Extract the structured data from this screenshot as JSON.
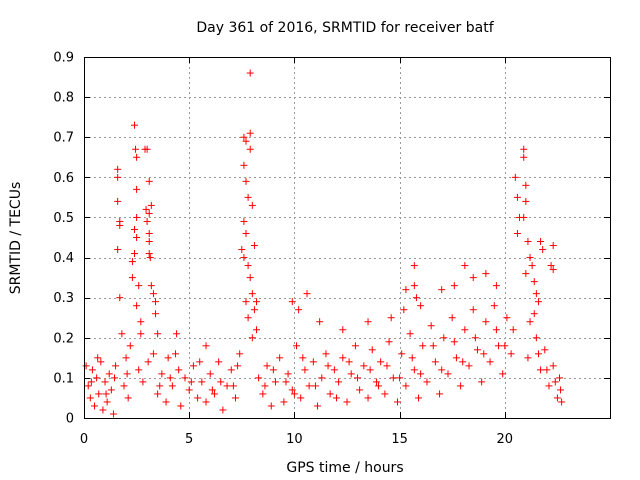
{
  "chart_data": {
    "type": "scatter",
    "title": "Day 361 of 2016, SRMTID for receiver batf",
    "xlabel": "GPS time / hours",
    "ylabel": "SRMTID / TECUs",
    "xlim": [
      0,
      25
    ],
    "ylim": [
      0,
      0.9
    ],
    "xticks": [
      0,
      5,
      10,
      15,
      20
    ],
    "yticks": [
      0,
      0.1,
      0.2,
      0.3,
      0.4,
      0.5,
      0.6,
      0.7,
      0.8,
      0.9
    ],
    "grid": true,
    "marker": "plus",
    "color": "#ff0000",
    "series": [
      {
        "name": "SRMTID",
        "points": [
          [
            1.6,
            0.62
          ],
          [
            1.6,
            0.6
          ],
          [
            1.6,
            0.54
          ],
          [
            1.7,
            0.49
          ],
          [
            1.7,
            0.48
          ],
          [
            1.6,
            0.42
          ],
          [
            1.7,
            0.3
          ],
          [
            1.8,
            0.21
          ],
          [
            2.4,
            0.73
          ],
          [
            2.45,
            0.67
          ],
          [
            2.5,
            0.65
          ],
          [
            2.5,
            0.57
          ],
          [
            2.5,
            0.5
          ],
          [
            2.4,
            0.47
          ],
          [
            2.5,
            0.45
          ],
          [
            2.4,
            0.41
          ],
          [
            2.3,
            0.39
          ],
          [
            2.3,
            0.35
          ],
          [
            2.6,
            0.33
          ],
          [
            2.5,
            0.28
          ],
          [
            2.7,
            0.24
          ],
          [
            2.7,
            0.21
          ],
          [
            2.9,
            0.67
          ],
          [
            3.0,
            0.67
          ],
          [
            3.1,
            0.59
          ],
          [
            2.95,
            0.52
          ],
          [
            3.1,
            0.51
          ],
          [
            3.0,
            0.49
          ],
          [
            3.1,
            0.46
          ],
          [
            3.1,
            0.44
          ],
          [
            3.1,
            0.41
          ],
          [
            3.15,
            0.4
          ],
          [
            3.2,
            0.53
          ],
          [
            3.2,
            0.33
          ],
          [
            3.3,
            0.31
          ],
          [
            3.4,
            0.29
          ],
          [
            3.4,
            0.26
          ],
          [
            3.5,
            0.21
          ],
          [
            7.6,
            0.7
          ],
          [
            7.7,
            0.69
          ],
          [
            7.9,
            0.71
          ],
          [
            7.9,
            0.67
          ],
          [
            7.6,
            0.63
          ],
          [
            7.7,
            0.59
          ],
          [
            7.8,
            0.55
          ],
          [
            8.0,
            0.53
          ],
          [
            7.6,
            0.49
          ],
          [
            7.7,
            0.46
          ],
          [
            7.5,
            0.42
          ],
          [
            7.6,
            0.4
          ],
          [
            7.8,
            0.38
          ],
          [
            7.9,
            0.35
          ],
          [
            8.0,
            0.31
          ],
          [
            7.7,
            0.29
          ],
          [
            8.1,
            0.27
          ],
          [
            7.8,
            0.25
          ],
          [
            8.2,
            0.22
          ],
          [
            8.0,
            0.2
          ],
          [
            7.9,
            0.86
          ],
          [
            8.1,
            0.43
          ],
          [
            8.2,
            0.29
          ],
          [
            20.5,
            0.6
          ],
          [
            20.6,
            0.55
          ],
          [
            20.7,
            0.5
          ],
          [
            20.6,
            0.46
          ],
          [
            20.9,
            0.67
          ],
          [
            20.9,
            0.65
          ],
          [
            21.0,
            0.58
          ],
          [
            21.0,
            0.54
          ],
          [
            20.9,
            0.5
          ],
          [
            21.1,
            0.44
          ],
          [
            21.2,
            0.4
          ],
          [
            21.3,
            0.38
          ],
          [
            21.0,
            0.36
          ],
          [
            21.4,
            0.34
          ],
          [
            21.5,
            0.31
          ],
          [
            21.6,
            0.29
          ],
          [
            21.7,
            0.44
          ],
          [
            21.8,
            0.42
          ],
          [
            21.4,
            0.26
          ],
          [
            21.2,
            0.24
          ],
          [
            22.3,
            0.43
          ],
          [
            22.2,
            0.38
          ],
          [
            22.3,
            0.37
          ],
          [
            15.7,
            0.38
          ],
          [
            15.7,
            0.33
          ],
          [
            15.8,
            0.3
          ],
          [
            16.0,
            0.28
          ],
          [
            15.3,
            0.32
          ],
          [
            15.2,
            0.27
          ],
          [
            17.0,
            0.32
          ],
          [
            17.6,
            0.33
          ],
          [
            18.1,
            0.38
          ],
          [
            18.5,
            0.35
          ],
          [
            19.1,
            0.36
          ],
          [
            19.6,
            0.33
          ],
          [
            10.6,
            0.31
          ],
          [
            11.2,
            0.24
          ],
          [
            9.9,
            0.29
          ],
          [
            10.2,
            0.27
          ],
          [
            4.4,
            0.21
          ],
          [
            5.8,
            0.18
          ],
          [
            12.3,
            0.22
          ],
          [
            13.5,
            0.24
          ],
          [
            14.6,
            0.25
          ],
          [
            0.2,
            0.08
          ],
          [
            0.3,
            0.05
          ],
          [
            0.4,
            0.12
          ],
          [
            0.5,
            0.03
          ],
          [
            0.6,
            0.1
          ],
          [
            0.7,
            0.06
          ],
          [
            0.8,
            0.14
          ],
          [
            0.9,
            0.02
          ],
          [
            1.0,
            0.09
          ],
          [
            1.1,
            0.04
          ],
          [
            1.2,
            0.11
          ],
          [
            1.3,
            0.07
          ],
          [
            1.4,
            0.01
          ],
          [
            1.5,
            0.13
          ],
          [
            1.9,
            0.08
          ],
          [
            2.0,
            0.15
          ],
          [
            2.1,
            0.05
          ],
          [
            2.2,
            0.18
          ],
          [
            2.6,
            0.12
          ],
          [
            2.8,
            0.09
          ],
          [
            3.3,
            0.16
          ],
          [
            3.5,
            0.06
          ],
          [
            3.7,
            0.11
          ],
          [
            3.9,
            0.04
          ],
          [
            4.0,
            0.15
          ],
          [
            4.2,
            0.08
          ],
          [
            4.5,
            0.12
          ],
          [
            4.6,
            0.03
          ],
          [
            4.8,
            0.1
          ],
          [
            5.0,
            0.07
          ],
          [
            5.2,
            0.13
          ],
          [
            5.4,
            0.05
          ],
          [
            5.6,
            0.09
          ],
          [
            5.8,
            0.04
          ],
          [
            6.0,
            0.11
          ],
          [
            6.2,
            0.06
          ],
          [
            6.4,
            0.14
          ],
          [
            6.6,
            0.02
          ],
          [
            6.8,
            0.08
          ],
          [
            7.0,
            0.12
          ],
          [
            7.2,
            0.05
          ],
          [
            7.4,
            0.16
          ],
          [
            8.3,
            0.1
          ],
          [
            8.5,
            0.06
          ],
          [
            8.7,
            0.13
          ],
          [
            8.9,
            0.03
          ],
          [
            9.1,
            0.09
          ],
          [
            9.3,
            0.15
          ],
          [
            9.5,
            0.04
          ],
          [
            9.7,
            0.11
          ],
          [
            9.9,
            0.07
          ],
          [
            10.1,
            0.18
          ],
          [
            10.3,
            0.05
          ],
          [
            10.5,
            0.12
          ],
          [
            10.7,
            0.08
          ],
          [
            10.9,
            0.14
          ],
          [
            11.1,
            0.03
          ],
          [
            11.3,
            0.1
          ],
          [
            11.5,
            0.16
          ],
          [
            11.7,
            0.06
          ],
          [
            11.9,
            0.12
          ],
          [
            12.1,
            0.09
          ],
          [
            12.3,
            0.15
          ],
          [
            12.5,
            0.04
          ],
          [
            12.7,
            0.11
          ],
          [
            12.9,
            0.18
          ],
          [
            13.1,
            0.07
          ],
          [
            13.3,
            0.13
          ],
          [
            13.5,
            0.05
          ],
          [
            13.7,
            0.17
          ],
          [
            13.9,
            0.09
          ],
          [
            14.1,
            0.14
          ],
          [
            14.3,
            0.06
          ],
          [
            14.5,
            0.19
          ],
          [
            14.7,
            0.1
          ],
          [
            14.9,
            0.04
          ],
          [
            15.1,
            0.16
          ],
          [
            15.3,
            0.08
          ],
          [
            15.5,
            0.21
          ],
          [
            15.7,
            0.12
          ],
          [
            15.9,
            0.05
          ],
          [
            16.1,
            0.18
          ],
          [
            16.3,
            0.09
          ],
          [
            16.5,
            0.23
          ],
          [
            16.7,
            0.14
          ],
          [
            16.9,
            0.06
          ],
          [
            17.1,
            0.2
          ],
          [
            17.3,
            0.11
          ],
          [
            17.5,
            0.25
          ],
          [
            17.7,
            0.15
          ],
          [
            17.9,
            0.08
          ],
          [
            18.1,
            0.22
          ],
          [
            18.3,
            0.13
          ],
          [
            18.5,
            0.27
          ],
          [
            18.7,
            0.17
          ],
          [
            18.9,
            0.09
          ],
          [
            19.1,
            0.24
          ],
          [
            19.3,
            0.14
          ],
          [
            19.5,
            0.28
          ],
          [
            19.7,
            0.18
          ],
          [
            19.9,
            0.11
          ],
          [
            20.1,
            0.25
          ],
          [
            20.3,
            0.16
          ],
          [
            21.5,
            0.2
          ],
          [
            21.7,
            0.12
          ],
          [
            21.9,
            0.17
          ],
          [
            22.1,
            0.08
          ],
          [
            22.3,
            0.13
          ],
          [
            22.5,
            0.05
          ],
          [
            22.6,
            0.1
          ],
          [
            22.7,
            0.04
          ],
          [
            0.1,
            0.13
          ],
          [
            0.35,
            0.09
          ],
          [
            0.65,
            0.15
          ],
          [
            1.05,
            0.06
          ],
          [
            1.45,
            0.1
          ],
          [
            2.05,
            0.11
          ],
          [
            3.05,
            0.14
          ],
          [
            3.6,
            0.08
          ],
          [
            4.1,
            0.1
          ],
          [
            4.35,
            0.16
          ],
          [
            5.1,
            0.09
          ],
          [
            5.5,
            0.14
          ],
          [
            6.1,
            0.07
          ],
          [
            6.5,
            0.09
          ],
          [
            7.1,
            0.08
          ],
          [
            7.3,
            0.13
          ],
          [
            8.6,
            0.08
          ],
          [
            9.0,
            0.12
          ],
          [
            9.6,
            0.09
          ],
          [
            10.0,
            0.06
          ],
          [
            10.4,
            0.15
          ],
          [
            11.0,
            0.08
          ],
          [
            11.6,
            0.13
          ],
          [
            12.0,
            0.05
          ],
          [
            12.6,
            0.14
          ],
          [
            13.0,
            0.1
          ],
          [
            13.6,
            0.12
          ],
          [
            14.0,
            0.08
          ],
          [
            14.4,
            0.13
          ],
          [
            15.0,
            0.1
          ],
          [
            15.6,
            0.15
          ],
          [
            16.0,
            0.11
          ],
          [
            16.6,
            0.18
          ],
          [
            17.0,
            0.12
          ],
          [
            17.6,
            0.19
          ],
          [
            18.0,
            0.14
          ],
          [
            18.6,
            0.2
          ],
          [
            19.0,
            0.16
          ],
          [
            19.6,
            0.22
          ],
          [
            20.0,
            0.18
          ],
          [
            20.4,
            0.22
          ],
          [
            21.1,
            0.15
          ],
          [
            21.6,
            0.16
          ],
          [
            22.0,
            0.12
          ],
          [
            22.4,
            0.09
          ],
          [
            22.65,
            0.07
          ]
        ]
      }
    ]
  }
}
